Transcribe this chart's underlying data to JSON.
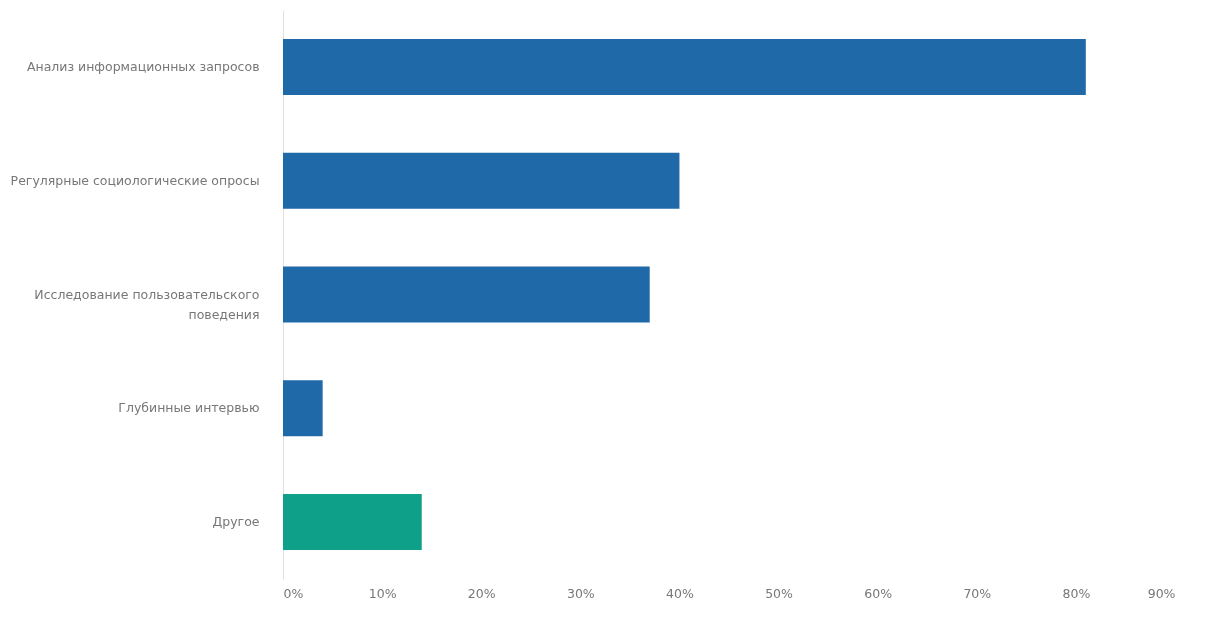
{
  "chart_data": {
    "type": "bar",
    "orientation": "horizontal",
    "categories": [
      "Анализ информационных запросов",
      "Регулярные социологические опросы",
      "Исследование пользовательского поведения",
      "Глубинные интервью",
      "Другое"
    ],
    "values": [
      81,
      40,
      37,
      4,
      14
    ],
    "colors": [
      "#1f69a8",
      "#1f69a8",
      "#1f69a8",
      "#1f69a8",
      "#0fa08a"
    ],
    "xlim": [
      0,
      90
    ],
    "xticks": [
      {
        "value": 0,
        "label": "0%"
      },
      {
        "value": 10,
        "label": "10%"
      },
      {
        "value": 20,
        "label": "20%"
      },
      {
        "value": 30,
        "label": "30%"
      },
      {
        "value": 40,
        "label": "40%"
      },
      {
        "value": 50,
        "label": "50%"
      },
      {
        "value": 60,
        "label": "60%"
      },
      {
        "value": 70,
        "label": "70%"
      },
      {
        "value": 80,
        "label": "80%"
      },
      {
        "value": 90,
        "label": "90%"
      }
    ],
    "grid": false
  }
}
